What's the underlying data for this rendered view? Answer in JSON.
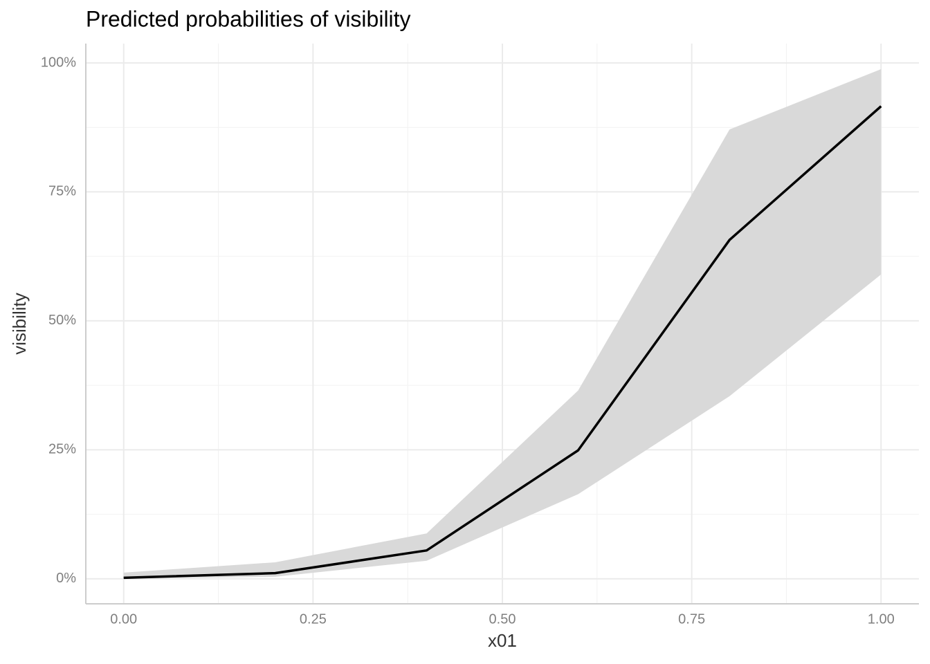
{
  "chart_data": {
    "type": "line",
    "title": "Predicted probabilities of visibility",
    "x_label": "x01",
    "y_label": "visibility",
    "x": [
      0,
      0.2,
      0.4,
      0.6,
      0.8,
      1.0
    ],
    "series": [
      {
        "color": "#000000",
        "values": [
          0.2,
          1.1,
          5.5,
          24.9,
          65.7,
          91.6
        ]
      }
    ],
    "ribbon": {
      "color": "#d9d9d9",
      "lower": [
        0,
        0.4,
        3.5,
        16.4,
        35.4,
        59.0
      ],
      "upper": [
        1.2,
        3.2,
        8.8,
        36.5,
        87.1,
        98.8
      ]
    },
    "xlim": [
      -0.05,
      1.05
    ],
    "ylim": [
      -4.85,
      103.75
    ],
    "xticks": [
      {
        "value": 0,
        "label": "0.00"
      },
      {
        "value": 0.25,
        "label": "0.25"
      },
      {
        "value": 0.5,
        "label": "0.50"
      },
      {
        "value": 0.75,
        "label": "0.75"
      },
      {
        "value": 1,
        "label": "1.00"
      }
    ],
    "yticks": [
      {
        "value": 0,
        "label": "0%"
      },
      {
        "value": 25,
        "label": "25%"
      },
      {
        "value": 50,
        "label": "50%"
      },
      {
        "value": 75,
        "label": "75%"
      },
      {
        "value": 100,
        "label": "100%"
      }
    ],
    "x_minor_ticks": [
      0.125,
      0.375,
      0.625,
      0.875
    ],
    "y_minor_ticks": [
      12.5,
      37.5,
      62.5,
      87.5
    ],
    "grid": true
  }
}
